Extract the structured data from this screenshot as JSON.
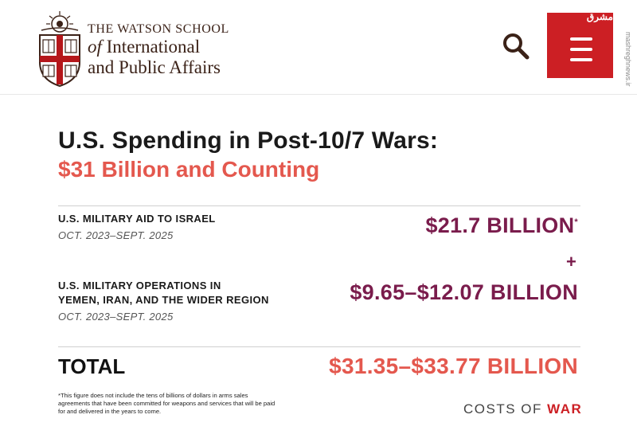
{
  "header": {
    "school_line1": "THE WATSON SCHOOL",
    "school_line2_italic": "of",
    "school_line2": "International",
    "school_line3": "and Public Affairs",
    "menu_watermark": "مشرق",
    "side_url": "mashreghnews.ir"
  },
  "card": {
    "title": "U.S. Spending in Post-10/7 Wars:",
    "subtitle": "$31 Billion and Counting",
    "rows": [
      {
        "label": "U.S. MILITARY AID TO ISRAEL",
        "date": "OCT. 2023–SEPT. 2025",
        "amount": "$21.7 BILLION",
        "mark": "*"
      },
      {
        "label_line1": "U.S. MILITARY OPERATIONS IN",
        "label_line2": "YEMEN, IRAN, AND THE WIDER REGION",
        "date": "OCT. 2023–SEPT. 2025",
        "amount": "$9.65–$12.07 BILLION"
      }
    ],
    "plus": "+",
    "total_label": "TOTAL",
    "total_amount": "$31.35–$33.77 BILLION",
    "footnote": "*This figure does not include the tens of billions of dollars in arms sales agreements that have been committed for weapons and services that will be paid for and delivered in the years to come.",
    "brand_part1": "COSTS OF",
    "brand_part2": "WAR"
  },
  "colors": {
    "brand_red": "#cc1f24",
    "subtitle_red": "#e4584e",
    "amount_maroon": "#7a1c4c"
  }
}
